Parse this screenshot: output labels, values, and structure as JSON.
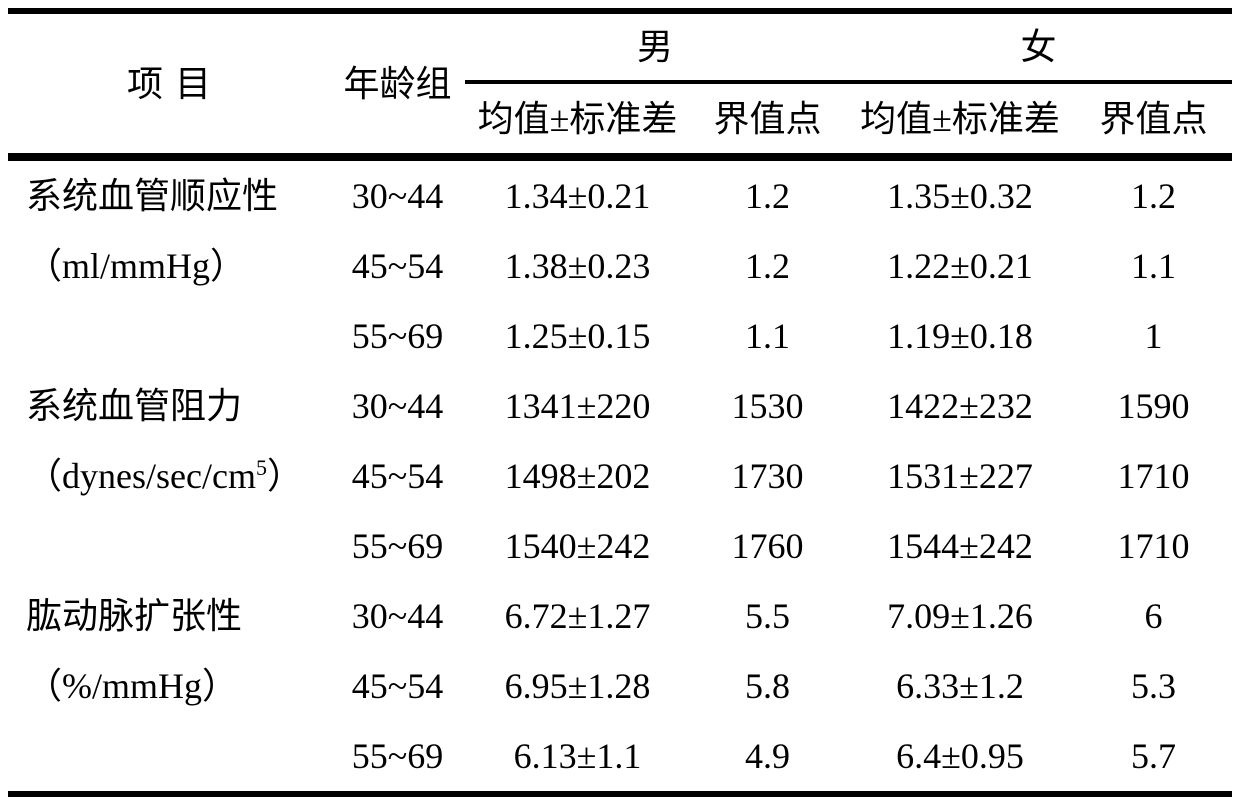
{
  "table": {
    "header": {
      "item": "项目",
      "age_group": "年龄组",
      "male": "男",
      "female": "女",
      "mean_sd": "均值±标准差",
      "cutoff": "界值点"
    },
    "groups": [
      {
        "name": "系统血管顺应性",
        "unit_pre": "（ml/mmHg）",
        "unit_sup": "",
        "unit_post": "",
        "rows": [
          {
            "age": "30~44",
            "male_mean_sd": "1.34±0.21",
            "male_cutoff": "1.2",
            "female_mean_sd": "1.35±0.32",
            "female_cutoff": "1.2"
          },
          {
            "age": "45~54",
            "male_mean_sd": "1.38±0.23",
            "male_cutoff": "1.2",
            "female_mean_sd": "1.22±0.21",
            "female_cutoff": "1.1"
          },
          {
            "age": "55~69",
            "male_mean_sd": "1.25±0.15",
            "male_cutoff": "1.1",
            "female_mean_sd": "1.19±0.18",
            "female_cutoff": "1"
          }
        ]
      },
      {
        "name": "系统血管阻力",
        "unit_pre": "（dynes/sec/cm",
        "unit_sup": "5",
        "unit_post": "）",
        "rows": [
          {
            "age": "30~44",
            "male_mean_sd": "1341±220",
            "male_cutoff": "1530",
            "female_mean_sd": "1422±232",
            "female_cutoff": "1590"
          },
          {
            "age": "45~54",
            "male_mean_sd": "1498±202",
            "male_cutoff": "1730",
            "female_mean_sd": "1531±227",
            "female_cutoff": "1710"
          },
          {
            "age": "55~69",
            "male_mean_sd": "1540±242",
            "male_cutoff": "1760",
            "female_mean_sd": "1544±242",
            "female_cutoff": "1710"
          }
        ]
      },
      {
        "name": "肱动脉扩张性",
        "unit_pre": "（%/mmHg）",
        "unit_sup": "",
        "unit_post": "",
        "rows": [
          {
            "age": "30~44",
            "male_mean_sd": "6.72±1.27",
            "male_cutoff": "5.5",
            "female_mean_sd": "7.09±1.26",
            "female_cutoff": "6"
          },
          {
            "age": "45~54",
            "male_mean_sd": "6.95±1.28",
            "male_cutoff": "5.8",
            "female_mean_sd": "6.33±1.2",
            "female_cutoff": "5.3"
          },
          {
            "age": "55~69",
            "male_mean_sd": "6.13±1.1",
            "male_cutoff": "4.9",
            "female_mean_sd": "6.4±0.95",
            "female_cutoff": "5.7"
          }
        ]
      }
    ]
  },
  "colors": {
    "text": "#000000",
    "background": "#ffffff",
    "rule": "#000000"
  }
}
